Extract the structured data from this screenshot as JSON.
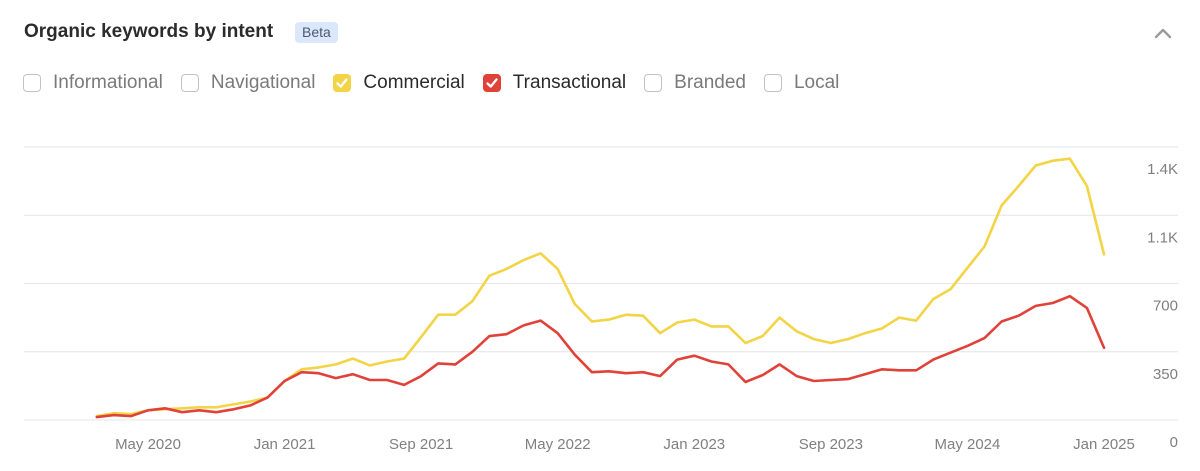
{
  "header": {
    "title": "Organic keywords by intent",
    "badge": "Beta"
  },
  "filters": [
    {
      "label": "Informational",
      "checked": false,
      "color": ""
    },
    {
      "label": "Navigational",
      "checked": false,
      "color": ""
    },
    {
      "label": "Commercial",
      "checked": true,
      "color": "#f2d446"
    },
    {
      "label": "Transactional",
      "checked": true,
      "color": "#e0423a"
    },
    {
      "label": "Branded",
      "checked": false,
      "color": ""
    },
    {
      "label": "Local",
      "checked": false,
      "color": ""
    }
  ],
  "chart_data": {
    "type": "line",
    "x_start": "2020-02",
    "x_labels": [
      "May 2020",
      "Jan 2021",
      "Sep 2021",
      "May 2022",
      "Jan 2023",
      "Sep 2023",
      "May 2024",
      "Jan 2025"
    ],
    "x_label_months": [
      "2020-05",
      "2021-01",
      "2021-09",
      "2022-05",
      "2023-01",
      "2023-09",
      "2024-05",
      "2025-01"
    ],
    "y_ticks": [
      0,
      350,
      700,
      "1.1K",
      "1.4K"
    ],
    "y_tick_values": [
      0,
      350,
      700,
      1050,
      1400
    ],
    "ylim": [
      0,
      1400
    ],
    "grid": true,
    "series": [
      {
        "name": "Commercial",
        "color": "#f2d446",
        "values": [
          20,
          35,
          30,
          50,
          55,
          60,
          65,
          65,
          80,
          95,
          115,
          200,
          260,
          270,
          285,
          315,
          280,
          300,
          315,
          425,
          540,
          540,
          610,
          740,
          775,
          820,
          855,
          775,
          595,
          505,
          515,
          540,
          535,
          445,
          500,
          515,
          480,
          480,
          395,
          430,
          525,
          455,
          415,
          395,
          415,
          445,
          470,
          525,
          510,
          620,
          670,
          780,
          890,
          1100,
          1200,
          1305,
          1330,
          1340,
          1200,
          850
        ]
      },
      {
        "name": "Transactional",
        "color": "#e0423a",
        "values": [
          15,
          25,
          20,
          50,
          60,
          40,
          50,
          40,
          55,
          75,
          115,
          200,
          245,
          240,
          215,
          235,
          205,
          205,
          180,
          225,
          290,
          285,
          350,
          430,
          440,
          485,
          510,
          445,
          335,
          245,
          250,
          240,
          245,
          225,
          310,
          330,
          300,
          285,
          195,
          230,
          285,
          225,
          200,
          205,
          210,
          235,
          260,
          255,
          255,
          310,
          345,
          380,
          420,
          505,
          535,
          585,
          600,
          635,
          575,
          370
        ]
      }
    ]
  },
  "colors": {
    "grid": "#e6e6e6",
    "axis_text": "#808080",
    "badge_bg": "#dbe8fb"
  }
}
